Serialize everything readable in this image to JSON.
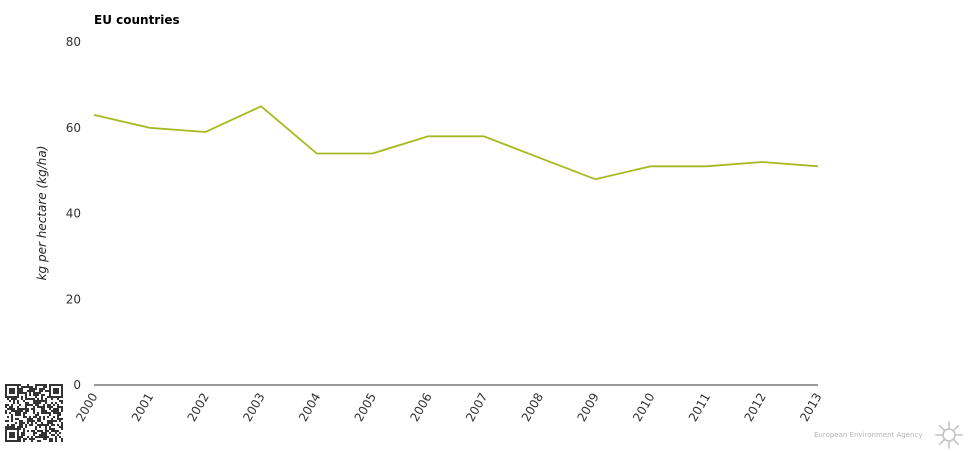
{
  "chart_data": {
    "type": "line",
    "title": "EU countries",
    "ylabel": "kg per hectare (kg/ha)",
    "xlabel": "",
    "x": [
      "2000",
      "2001",
      "2002",
      "2003",
      "2004",
      "2005",
      "2006",
      "2007",
      "2008",
      "2009",
      "2010",
      "2011",
      "2012",
      "2013"
    ],
    "series": [
      {
        "values": [
          63,
          60,
          59,
          65,
          54,
          54,
          58,
          58,
          53,
          48,
          51,
          51,
          52,
          51
        ],
        "color": "#a8b820"
      }
    ],
    "ylim": [
      0,
      80
    ],
    "yticks": [
      0,
      20,
      40,
      60,
      80
    ],
    "grid": false,
    "legend": "none"
  },
  "footer": {
    "credit": "European Environment Agency"
  },
  "icons": {
    "qr": "qr-code-icon",
    "logo": "eea-sun-logo-icon"
  }
}
